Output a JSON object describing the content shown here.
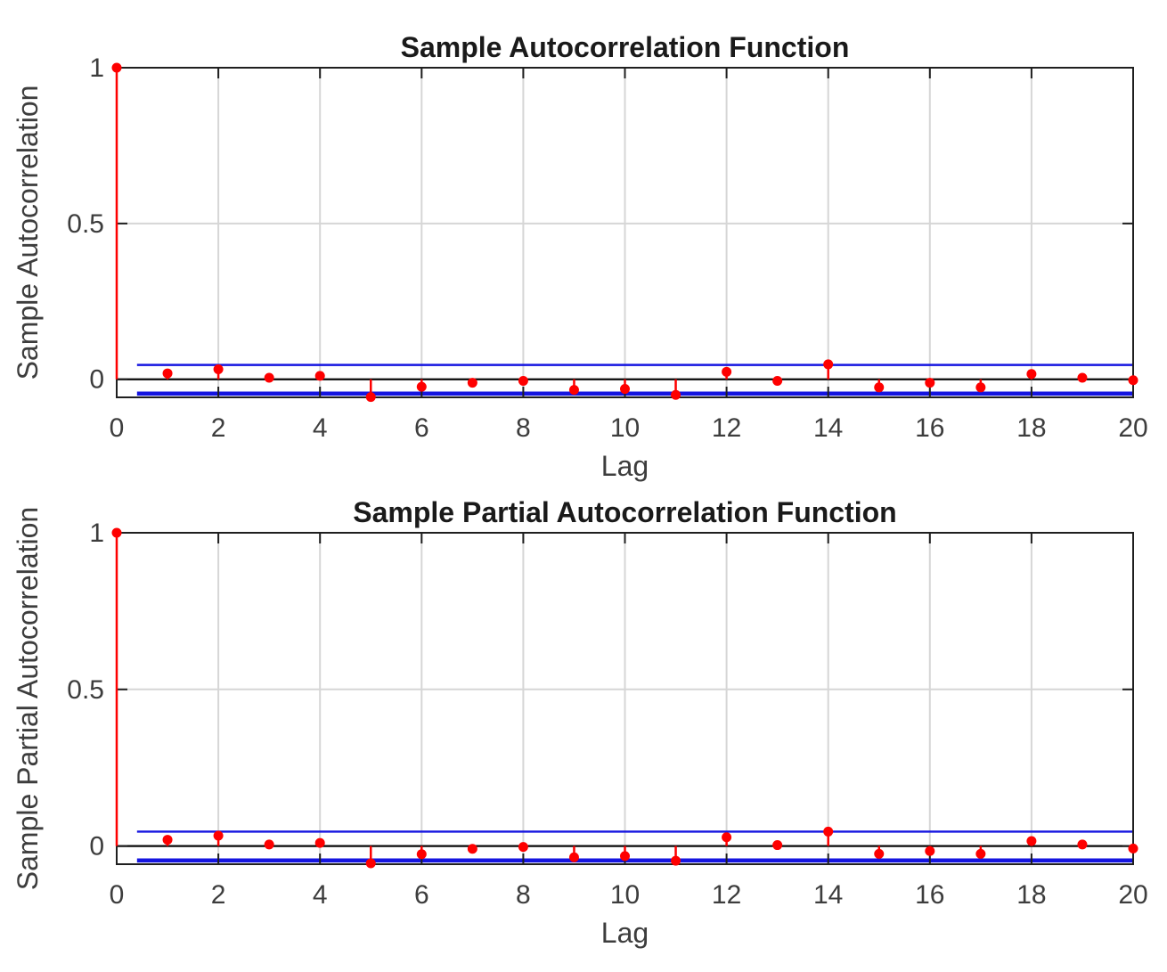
{
  "figure": {
    "background": "#ffffff"
  },
  "colors": {
    "stem": "#fe0000",
    "confidence": "#1515e0",
    "zero_line": "#0a0a0a",
    "grid": "#d6d6d6",
    "axis_box": "#1f1f1f",
    "tick_label": "#3d3d3d",
    "axis_label": "#3d3d3d",
    "title": "#1a1a1a"
  },
  "chart_data": [
    {
      "id": "acf",
      "type": "stem",
      "title": "Sample Autocorrelation Function",
      "xlabel": "Lag",
      "ylabel": "Sample Autocorrelation",
      "xlim": [
        0,
        20
      ],
      "ylim": [
        -0.058,
        1.0
      ],
      "xticks": [
        0,
        2,
        4,
        6,
        8,
        10,
        12,
        14,
        16,
        18,
        20
      ],
      "xtick_labels": [
        "0",
        "2",
        "4",
        "6",
        "8",
        "10",
        "12",
        "14",
        "16",
        "18",
        "20"
      ],
      "yticks": [
        0,
        0.5,
        1
      ],
      "ytick_labels": [
        "0",
        "0.5",
        "1"
      ],
      "grid": true,
      "legend": "none",
      "confidence_bounds": {
        "upper": 0.046,
        "lower": -0.046,
        "x_start": 0.4,
        "x_end": 20
      },
      "lags": [
        0,
        1,
        2,
        3,
        4,
        5,
        6,
        7,
        8,
        9,
        10,
        11,
        12,
        13,
        14,
        15,
        16,
        17,
        18,
        19,
        20
      ],
      "values": [
        1.0,
        0.019,
        0.032,
        0.005,
        0.011,
        -0.057,
        -0.024,
        -0.011,
        -0.005,
        -0.034,
        -0.031,
        -0.05,
        0.024,
        -0.005,
        0.048,
        -0.026,
        -0.011,
        -0.026,
        0.017,
        0.005,
        -0.003
      ]
    },
    {
      "id": "pacf",
      "type": "stem",
      "title": "Sample Partial Autocorrelation Function",
      "xlabel": "Lag",
      "ylabel": "Sample Partial Autocorrelation",
      "xlim": [
        0,
        20
      ],
      "ylim": [
        -0.058,
        1.0
      ],
      "xticks": [
        0,
        2,
        4,
        6,
        8,
        10,
        12,
        14,
        16,
        18,
        20
      ],
      "xtick_labels": [
        "0",
        "2",
        "4",
        "6",
        "8",
        "10",
        "12",
        "14",
        "16",
        "18",
        "20"
      ],
      "yticks": [
        0,
        0.5,
        1
      ],
      "ytick_labels": [
        "0",
        "0.5",
        "1"
      ],
      "grid": true,
      "legend": "none",
      "confidence_bounds": {
        "upper": 0.046,
        "lower": -0.046,
        "x_start": 0.4,
        "x_end": 20
      },
      "lags": [
        0,
        1,
        2,
        3,
        4,
        5,
        6,
        7,
        8,
        9,
        10,
        11,
        12,
        13,
        14,
        15,
        16,
        17,
        18,
        19,
        20
      ],
      "values": [
        1.0,
        0.02,
        0.033,
        0.005,
        0.01,
        -0.055,
        -0.026,
        -0.009,
        -0.003,
        -0.036,
        -0.032,
        -0.047,
        0.028,
        0.003,
        0.046,
        -0.025,
        -0.016,
        -0.025,
        0.016,
        0.005,
        -0.008
      ]
    }
  ]
}
